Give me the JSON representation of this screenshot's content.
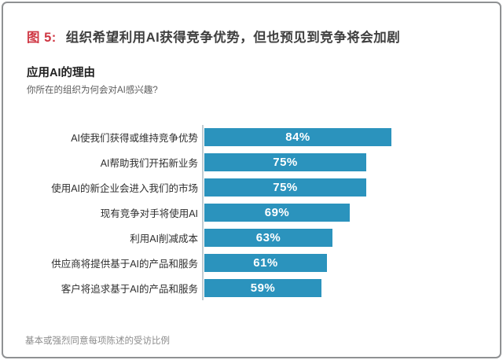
{
  "figure": {
    "label": "图 5:",
    "title": "组织希望利用AI获得竞争优势，但也预见到竞争将会加剧"
  },
  "chart_data": {
    "type": "bar",
    "orientation": "horizontal",
    "title": "应用AI的理由",
    "subtitle": "你所在的组织为何会对AI感兴趣?",
    "categories": [
      "AI使我们获得或维持竞争优势",
      "AI帮助我们开拓新业务",
      "使用AI的新企业会进入我们的市场",
      "现有竞争对手将使用AI",
      "利用AI削减成本",
      "供应商将提供基于AI的产品和服务",
      "客户将追求基于AI的产品和服务"
    ],
    "values": [
      84,
      75,
      75,
      69,
      63,
      61,
      59
    ],
    "value_labels": [
      "84%",
      "75%",
      "75%",
      "69%",
      "63%",
      "61%",
      "59%"
    ],
    "value_suffix": "%",
    "footnote": "基本或强烈同意每项陈述的受访比例",
    "xlim": [
      17,
      100
    ],
    "grid": false,
    "legend": false,
    "bar_color": "#2b93bd",
    "value_label_color": "#ffffff"
  },
  "colors": {
    "accent_red": "#cf3743",
    "title_text": "#3f3f3f",
    "axis_line": "#c2cdd2",
    "card_border": "#8f9193",
    "footnote_text": "#8c8c8c"
  }
}
